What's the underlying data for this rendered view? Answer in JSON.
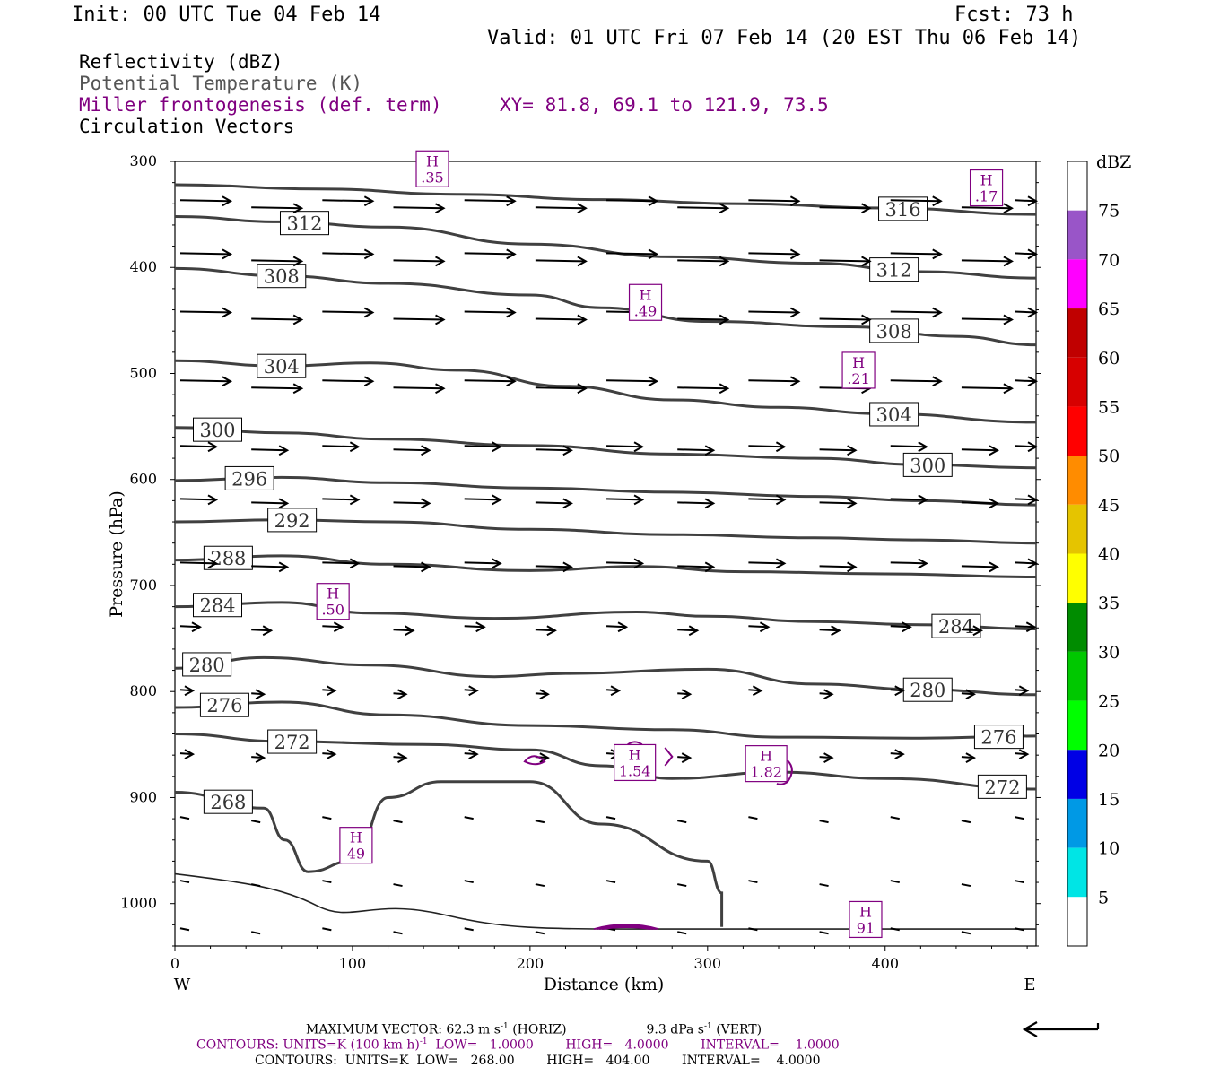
{
  "header": {
    "init": "Init: 00 UTC Tue 04 Feb 14",
    "fcst": "Fcst:   73 h",
    "valid": "Valid: 01 UTC Fri 07 Feb 14 (20 EST Thu 06 Feb 14)"
  },
  "legend_titles": {
    "reflectivity": "Reflectivity (dBZ)",
    "theta": "Potential Temperature (K)",
    "miller": "Miller frontogenesis (def. term)",
    "xy": "XY=  81.8, 69.1 to 121.9, 73.5",
    "vectors": "Circulation Vectors"
  },
  "colors": {
    "theta_contour": "#404040",
    "frontogenesis": "#800080",
    "vector": "#000000"
  },
  "chart_data": {
    "type": "cross-section",
    "xlabel": "Distance (km)",
    "ylabel": "Pressure (hPa)",
    "xlim": [
      0,
      485
    ],
    "ylim": [
      1040,
      300
    ],
    "y_log_scale": false,
    "x_ticks": [
      0,
      100,
      200,
      300,
      400
    ],
    "y_ticks": [
      300,
      400,
      500,
      600,
      700,
      800,
      900,
      1000
    ],
    "x_end_labels": {
      "left": "W",
      "right": "E"
    },
    "theta_contours": [
      {
        "value": 316,
        "label": "316",
        "label_x": 410,
        "points": [
          [
            0,
            322
          ],
          [
            80,
            326
          ],
          [
            160,
            331
          ],
          [
            240,
            336
          ],
          [
            320,
            340
          ],
          [
            400,
            344
          ],
          [
            485,
            350
          ]
        ]
      },
      {
        "value": 312,
        "label": "312",
        "label_x": 73,
        "points": [
          [
            0,
            352
          ],
          [
            60,
            357
          ],
          [
            120,
            362
          ],
          [
            200,
            378
          ],
          [
            280,
            390
          ],
          [
            360,
            396
          ],
          [
            420,
            404
          ],
          [
            485,
            410
          ]
        ]
      },
      {
        "value": 312,
        "label": "312",
        "label_x": 405,
        "points": []
      },
      {
        "value": 308,
        "label": "308",
        "label_x": 60,
        "points": [
          [
            0,
            401
          ],
          [
            60,
            408
          ],
          [
            120,
            415
          ],
          [
            200,
            426
          ],
          [
            240,
            438
          ],
          [
            300,
            451
          ],
          [
            380,
            456
          ],
          [
            440,
            465
          ],
          [
            485,
            473
          ]
        ]
      },
      {
        "value": 308,
        "label": "308",
        "label_x": 405,
        "points": []
      },
      {
        "value": 304,
        "label": "304",
        "label_x": 60,
        "points": [
          [
            0,
            488
          ],
          [
            60,
            493
          ],
          [
            110,
            490
          ],
          [
            160,
            497
          ],
          [
            220,
            512
          ],
          [
            280,
            525
          ],
          [
            340,
            532
          ],
          [
            400,
            538
          ],
          [
            485,
            546
          ]
        ]
      },
      {
        "value": 304,
        "label": "304",
        "label_x": 405,
        "points": []
      },
      {
        "value": 300,
        "label": "300",
        "label_x": 24,
        "points": [
          [
            0,
            551
          ],
          [
            60,
            556
          ],
          [
            120,
            562
          ],
          [
            200,
            568
          ],
          [
            280,
            576
          ],
          [
            360,
            580
          ],
          [
            420,
            586
          ],
          [
            485,
            589
          ]
        ]
      },
      {
        "value": 300,
        "label": "300",
        "label_x": 424,
        "points": []
      },
      {
        "value": 296,
        "label": "296",
        "label_x": 42,
        "points": [
          [
            0,
            601
          ],
          [
            60,
            598
          ],
          [
            120,
            603
          ],
          [
            200,
            608
          ],
          [
            280,
            612
          ],
          [
            360,
            616
          ],
          [
            420,
            620
          ],
          [
            485,
            624
          ]
        ]
      },
      {
        "value": 292,
        "label": "292",
        "label_x": 66,
        "points": [
          [
            0,
            640
          ],
          [
            60,
            638
          ],
          [
            120,
            640
          ],
          [
            200,
            647
          ],
          [
            280,
            652
          ],
          [
            360,
            655
          ],
          [
            420,
            657
          ],
          [
            485,
            660
          ]
        ]
      },
      {
        "value": 288,
        "label": "288",
        "label_x": 30,
        "points": [
          [
            0,
            676
          ],
          [
            60,
            672
          ],
          [
            120,
            680
          ],
          [
            200,
            686
          ],
          [
            260,
            682
          ],
          [
            320,
            687
          ],
          [
            400,
            689
          ],
          [
            485,
            692
          ]
        ]
      },
      {
        "value": 284,
        "label": "284",
        "label_x": 24,
        "points": [
          [
            0,
            720
          ],
          [
            60,
            716
          ],
          [
            110,
            726
          ],
          [
            180,
            731
          ],
          [
            260,
            725
          ],
          [
            300,
            729
          ],
          [
            360,
            734
          ],
          [
            420,
            737
          ],
          [
            485,
            741
          ]
        ]
      },
      {
        "value": 284,
        "label": "284",
        "label_x": 440,
        "points": []
      },
      {
        "value": 280,
        "label": "280",
        "label_x": 18,
        "points": [
          [
            0,
            778
          ],
          [
            50,
            768
          ],
          [
            110,
            775
          ],
          [
            180,
            786
          ],
          [
            220,
            783
          ],
          [
            300,
            779
          ],
          [
            360,
            793
          ],
          [
            420,
            798
          ],
          [
            485,
            803
          ]
        ]
      },
      {
        "value": 280,
        "label": "280",
        "label_x": 424,
        "points": []
      },
      {
        "value": 276,
        "label": "276",
        "label_x": 28,
        "points": [
          [
            0,
            815
          ],
          [
            60,
            810
          ],
          [
            120,
            822
          ],
          [
            200,
            832
          ],
          [
            280,
            836
          ],
          [
            340,
            843
          ],
          [
            420,
            844
          ],
          [
            485,
            842
          ]
        ]
      },
      {
        "value": 276,
        "label": "276",
        "label_x": 464,
        "points": []
      },
      {
        "value": 272,
        "label": "272",
        "label_x": 66,
        "points": [
          [
            0,
            840
          ],
          [
            60,
            847
          ],
          [
            140,
            850
          ],
          [
            200,
            855
          ],
          [
            240,
            870
          ],
          [
            280,
            882
          ],
          [
            340,
            876
          ],
          [
            400,
            882
          ],
          [
            485,
            892
          ]
        ]
      },
      {
        "value": 272,
        "label": "272",
        "label_x": 466,
        "points": []
      },
      {
        "value": 268,
        "label": "268",
        "label_x": 30,
        "points": [
          [
            0,
            895
          ],
          [
            50,
            910
          ],
          [
            62,
            940
          ],
          [
            75,
            970
          ],
          [
            100,
            960
          ],
          [
            120,
            900
          ],
          [
            150,
            885
          ],
          [
            200,
            885
          ],
          [
            240,
            925
          ],
          [
            300,
            960
          ],
          [
            308,
            990
          ],
          [
            308,
            1022
          ]
        ]
      }
    ],
    "vectors_note": "Circulation vectors show predominantly westerly (west-to-east) flow throughout the section; stronger aloft (300-500 hPa), weak near surface.",
    "vector_rows": [
      {
        "p": 340,
        "x": [
          0,
          40,
          80,
          120,
          160,
          200,
          240,
          280,
          320,
          360,
          400,
          440,
          470
        ]
      },
      {
        "p": 390,
        "x": [
          0,
          40,
          80,
          120,
          160,
          200,
          240,
          280,
          320,
          360,
          400,
          440,
          470
        ]
      },
      {
        "p": 445,
        "x": [
          0,
          40,
          80,
          120,
          160,
          200,
          240,
          280,
          320,
          360,
          400,
          440,
          470
        ]
      },
      {
        "p": 510,
        "x": [
          0,
          40,
          80,
          120,
          160,
          200,
          240,
          280,
          320,
          360,
          400,
          440,
          470
        ]
      },
      {
        "p": 570,
        "x": [
          0,
          40,
          80,
          120,
          160,
          200,
          240,
          280,
          320,
          360,
          400,
          440,
          470
        ]
      },
      {
        "p": 620,
        "x": [
          0,
          40,
          80,
          120,
          160,
          200,
          240,
          280,
          320,
          360,
          400,
          440,
          470
        ]
      },
      {
        "p": 680,
        "x": [
          0,
          40,
          80,
          120,
          160,
          200,
          240,
          280,
          320,
          360,
          400,
          440,
          470
        ]
      },
      {
        "p": 740,
        "x": [
          0,
          40,
          80,
          120,
          160,
          200,
          240,
          280,
          320,
          360,
          400,
          440,
          470
        ]
      },
      {
        "p": 800,
        "x": [
          0,
          40,
          80,
          120,
          160,
          200,
          240,
          280,
          320,
          360,
          400,
          440,
          470
        ]
      },
      {
        "p": 860,
        "x": [
          0,
          40,
          80,
          120,
          160,
          200,
          240,
          280,
          320,
          360,
          400,
          440,
          470
        ]
      },
      {
        "p": 920,
        "x": [
          0,
          40,
          80,
          120,
          160,
          200,
          240,
          280,
          320,
          360,
          400,
          440,
          470
        ]
      },
      {
        "p": 980,
        "x": [
          0,
          40,
          80,
          120,
          160,
          200,
          240,
          280,
          320,
          360,
          400,
          440,
          470
        ]
      },
      {
        "p": 1025,
        "x": [
          0,
          40,
          80,
          120,
          160,
          200,
          240,
          280,
          320,
          360,
          400,
          440,
          470
        ]
      }
    ],
    "highs": [
      {
        "x": 145,
        "p": 307,
        "label": ".35"
      },
      {
        "x": 457,
        "p": 325,
        "label": ".17"
      },
      {
        "x": 265,
        "p": 433,
        "label": ".49"
      },
      {
        "x": 385,
        "p": 497,
        "label": ".21"
      },
      {
        "x": 89,
        "p": 715,
        "label": ".50"
      },
      {
        "x": 259,
        "p": 867,
        "label": "1.54"
      },
      {
        "x": 333,
        "p": 868,
        "label": "1.82"
      },
      {
        "x": 102,
        "p": 945,
        "label": "49"
      },
      {
        "x": 389,
        "p": 1015,
        "label": "91"
      }
    ],
    "high_marker": "H",
    "colorbar": {
      "title": "dBZ",
      "levels": [
        "5",
        "10",
        "15",
        "20",
        "25",
        "30",
        "35",
        "40",
        "45",
        "50",
        "55",
        "60",
        "65",
        "70",
        "75"
      ],
      "colors": [
        "#ffffff",
        "#00e5e5",
        "#0099e5",
        "#0000e5",
        "#00ff00",
        "#00c800",
        "#008c00",
        "#ffff00",
        "#e5c400",
        "#ff8c00",
        "#ff0000",
        "#d70000",
        "#c00000",
        "#ff00ff",
        "#9955c8",
        "#ffffff"
      ]
    }
  },
  "footer": {
    "line1_a": "MAXIMUM VECTOR:  62.3 m s",
    "line1_b": "-1",
    "line1_c": " (HORIZ)",
    "line1_d": "9.3 dPa s",
    "line1_e": "-1",
    "line1_f": " (VERT)",
    "line2": "CONTOURS:  UNITS=K (100 km h)",
    "line2_sup": "-1",
    "line2_rest": "  LOW=   1.0000        HIGH=   4.0000        INTERVAL=    1.0000",
    "line3": "CONTOURS:  UNITS=K  LOW=   268.00        HIGH=   404.00        INTERVAL=    4.0000"
  }
}
